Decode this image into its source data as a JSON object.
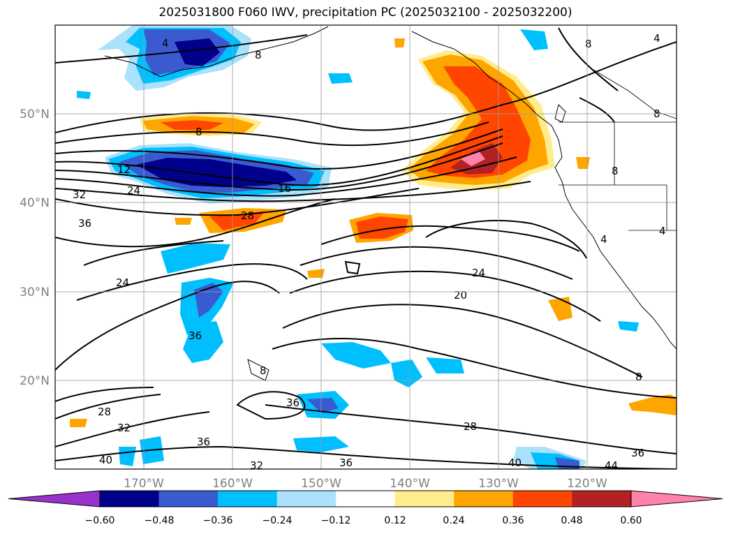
{
  "title": "2025031800 F060 IWV, precipitation PC (2025032100 - 2025032200)",
  "lat_labels": [
    "50°N",
    "40°N",
    "30°N",
    "20°N"
  ],
  "lon_labels": [
    "170°W",
    "160°W",
    "150°W",
    "140°W",
    "130°W",
    "120°W"
  ],
  "contour_labels": [
    "4",
    "8",
    "8",
    "8",
    "8",
    "8",
    "12",
    "16",
    "24",
    "24",
    "24",
    "20",
    "28",
    "28",
    "28",
    "32",
    "32",
    "32",
    "36",
    "36",
    "36",
    "36",
    "36",
    "36",
    "40",
    "40",
    "44",
    "4",
    "4",
    "4",
    "8",
    "8"
  ],
  "colorbar": {
    "tick_labels": [
      "−0.60",
      "−0.48",
      "−0.36",
      "−0.24",
      "−0.12",
      "0.12",
      "0.24",
      "0.36",
      "0.48",
      "0.60"
    ],
    "colors": [
      "#9932cc",
      "#00008b",
      "#3a5bd0",
      "#00bfff",
      "#abe2fb",
      "#ffffff",
      "#ffec8b",
      "#ffa500",
      "#ff4500",
      "#b22222",
      "#ff82ab"
    ]
  }
}
